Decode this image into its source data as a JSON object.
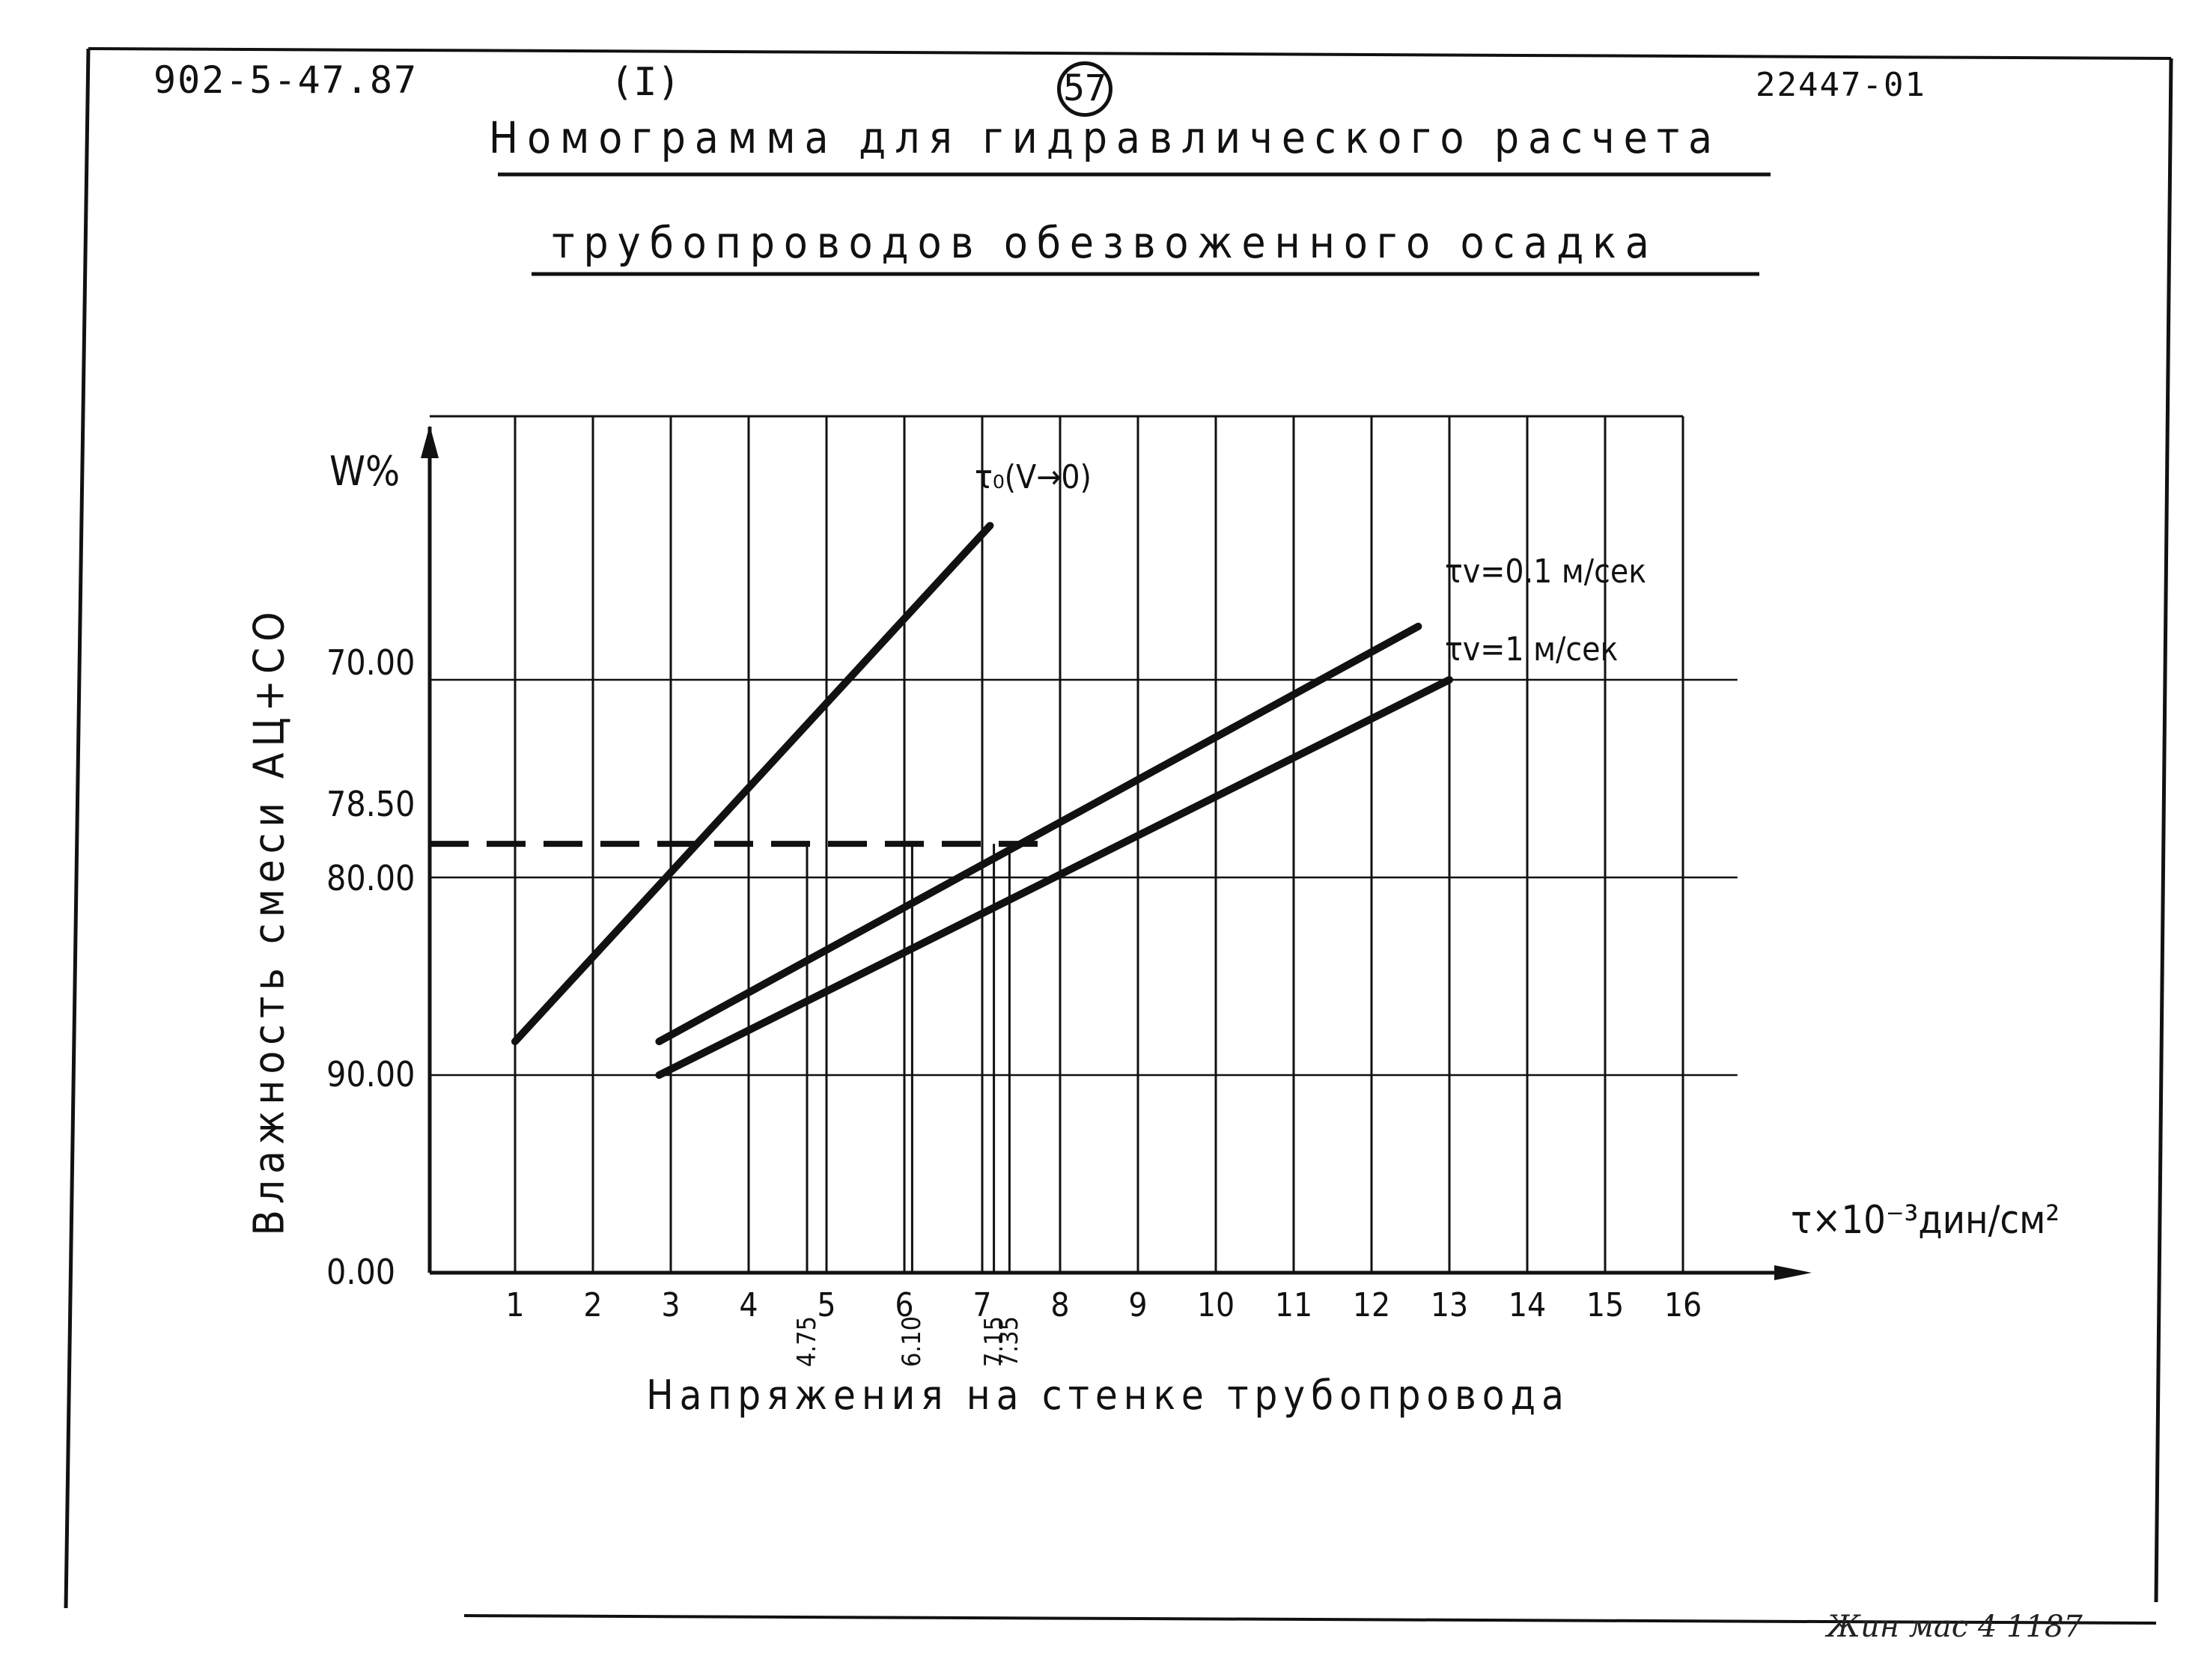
{
  "header": {
    "doc_code": "902-5-47.87",
    "section": "(I)",
    "page": "57",
    "drawing_code": "22447-01"
  },
  "title": {
    "line1": "Номограмма для гидравлического расчета",
    "line2": "трубопроводов обезвоженного осадка"
  },
  "signature": "signature",
  "chart_data": {
    "type": "line",
    "title": "Номограмма для гидравлического расчета трубопроводов обезвоженного осадка",
    "xlabel": "Напряжения на стенке трубопровода",
    "x_unit": "τ×10⁻³дин/см²",
    "ylabel": "Влажность смеси АЦ+СО",
    "y_unit": "W%",
    "xlim": [
      0,
      16
    ],
    "x_ticks": [
      "1",
      "2",
      "3",
      "4",
      "5",
      "6",
      "7",
      "8",
      "9",
      "10",
      "11",
      "12",
      "13",
      "14",
      "15",
      "16"
    ],
    "y_ticks": [
      "0.00",
      "90.00",
      "80.00",
      "78.50",
      "70.00"
    ],
    "y_tick_positions": [
      0,
      1,
      2,
      2.17,
      3
    ],
    "grid": true,
    "series": [
      {
        "name": "τ₀(V→0)",
        "x": [
          1.0,
          7.1
        ],
        "y": [
          1.17,
          3.78
        ]
      },
      {
        "name": "τv=0.1 м/сек",
        "x": [
          2.85,
          12.6
        ],
        "y": [
          1.17,
          3.27
        ]
      },
      {
        "name": "τv=1 м/сек",
        "x": [
          2.85,
          13.0
        ],
        "y": [
          1.0,
          3.0
        ]
      }
    ],
    "reference_line": {
      "y_value": "78.50",
      "x_intersections": [
        4.75,
        6.1,
        7.15,
        7.35
      ],
      "x_labels": [
        "4.75",
        "6.10",
        "7.15",
        "7.35"
      ]
    }
  }
}
